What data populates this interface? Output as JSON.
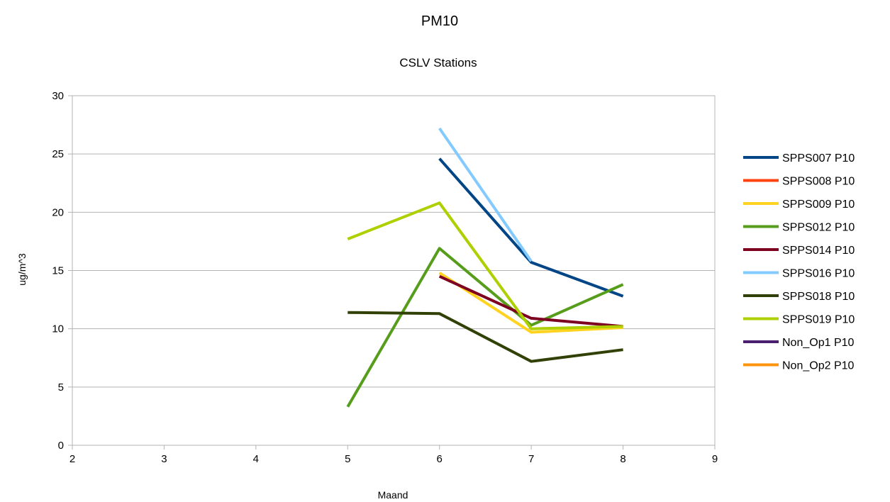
{
  "chart_data": {
    "type": "line",
    "title": "PM10",
    "subtitle": "CSLV Stations",
    "xlabel": "Maand",
    "ylabel": "ug/m^3",
    "xlim": [
      2,
      9
    ],
    "ylim": [
      0,
      30
    ],
    "x_ticks": [
      "2",
      "3",
      "4",
      "5",
      "6",
      "7",
      "8",
      "9"
    ],
    "y_ticks": [
      "0",
      "5",
      "10",
      "15",
      "20",
      "25",
      "30"
    ],
    "grid": true,
    "legend_position": "right",
    "series": [
      {
        "name": "SPPS007 P10",
        "color": "#004586",
        "points": [
          [
            6,
            24.6
          ],
          [
            7,
            15.7
          ],
          [
            8,
            12.8
          ]
        ]
      },
      {
        "name": "SPPS008 P10",
        "color": "#ff420e",
        "points": []
      },
      {
        "name": "SPPS009 P10",
        "color": "#ffd320",
        "points": [
          [
            6,
            14.8
          ],
          [
            7,
            9.7
          ],
          [
            8,
            10.1
          ]
        ]
      },
      {
        "name": "SPPS012 P10",
        "color": "#579d1c",
        "points": [
          [
            5,
            3.3
          ],
          [
            6,
            16.9
          ],
          [
            7,
            10.3
          ],
          [
            8,
            13.8
          ]
        ]
      },
      {
        "name": "SPPS014 P10",
        "color": "#7e0021",
        "points": [
          [
            6,
            14.5
          ],
          [
            7,
            10.9
          ],
          [
            8,
            10.2
          ]
        ]
      },
      {
        "name": "SPPS016 P10",
        "color": "#83caff",
        "points": [
          [
            6,
            27.2
          ],
          [
            7,
            15.8
          ]
        ]
      },
      {
        "name": "SPPS018 P10",
        "color": "#314004",
        "points": [
          [
            5,
            11.4
          ],
          [
            6,
            11.3
          ],
          [
            7,
            7.2
          ],
          [
            8,
            8.2
          ]
        ]
      },
      {
        "name": "SPPS019 P10",
        "color": "#aecf00",
        "points": [
          [
            5,
            17.7
          ],
          [
            6,
            20.8
          ],
          [
            7,
            10.0
          ],
          [
            8,
            10.2
          ]
        ]
      },
      {
        "name": "Non_Op1 P10",
        "color": "#4b1f6f",
        "points": []
      },
      {
        "name": "Non_Op2 P10",
        "color": "#ff950e",
        "points": []
      }
    ]
  }
}
